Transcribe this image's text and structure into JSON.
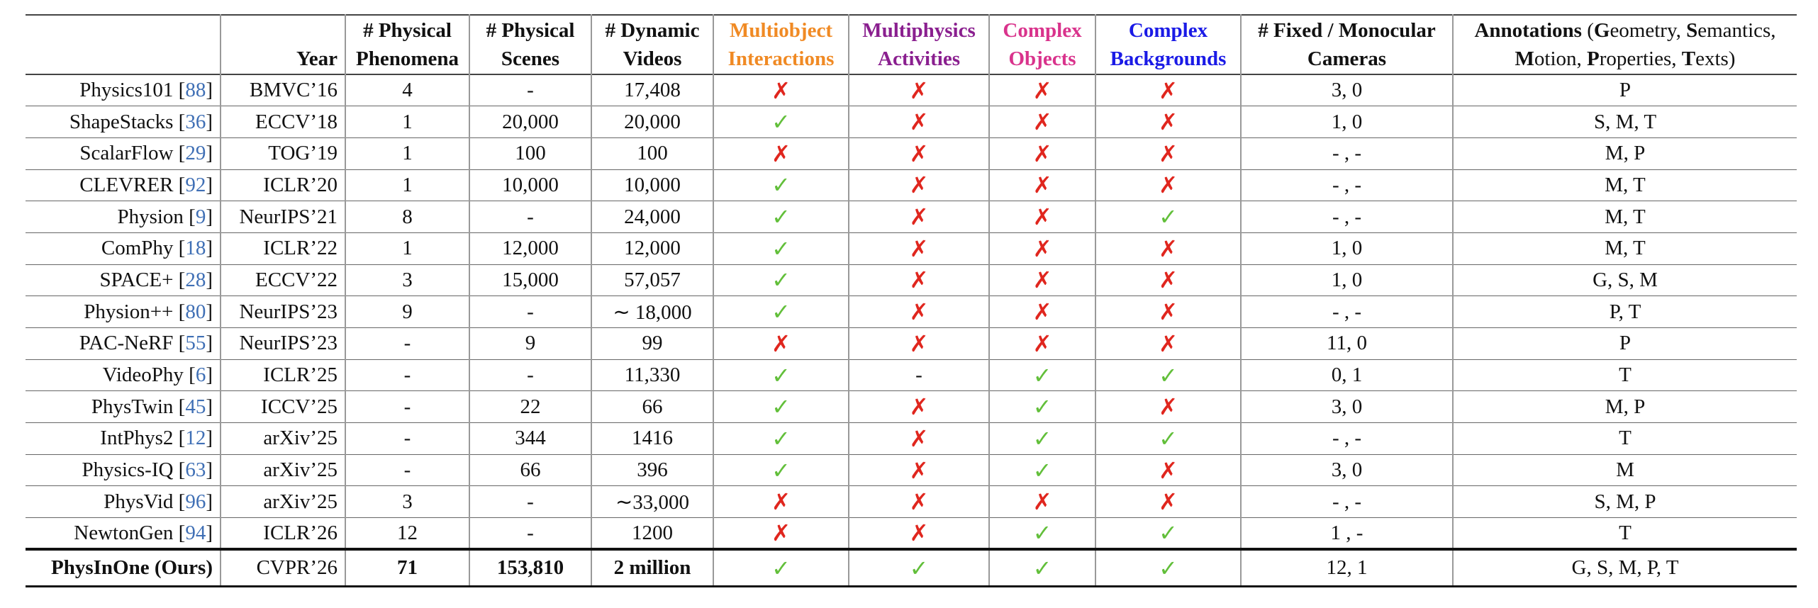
{
  "table": {
    "header": [
      {
        "lines": [
          ""
        ]
      },
      {
        "lines": [
          "",
          "Year"
        ]
      },
      {
        "lines": [
          "# Physical",
          "Phenomena"
        ]
      },
      {
        "lines": [
          "# Physical",
          "Scenes"
        ]
      },
      {
        "lines": [
          "# Dynamic",
          "Videos"
        ]
      },
      {
        "lines": [
          "Multiobject",
          "Interactions"
        ],
        "color": "#f08a24"
      },
      {
        "lines": [
          "Multiphysics",
          "Activities"
        ],
        "color": "#8a1f8f"
      },
      {
        "lines": [
          "Complex",
          "Objects"
        ],
        "color": "#d9338c"
      },
      {
        "lines": [
          "Complex",
          "Backgrounds"
        ],
        "color": "#1a1ae6"
      },
      {
        "lines": [
          "# Fixed / Monocular",
          "Cameras"
        ]
      },
      {
        "lines": [
          [
            {
              "t": "Annotations",
              "b": true
            },
            {
              "t": " (",
              "b": false
            },
            {
              "t": "G",
              "b": true
            },
            {
              "t": "eometry, ",
              "b": false
            },
            {
              "t": "S",
              "b": true
            },
            {
              "t": "emantics,",
              "b": false
            }
          ],
          [
            {
              "t": "M",
              "b": true
            },
            {
              "t": "otion, ",
              "b": false
            },
            {
              "t": "P",
              "b": true
            },
            {
              "t": "roperties, ",
              "b": false
            },
            {
              "t": "T",
              "b": true
            },
            {
              "t": "exts)",
              "b": false
            }
          ]
        ]
      }
    ],
    "check_colors": {
      "✓": "#62bf3a",
      "✗": "#e0261e"
    },
    "ref_color": "#3f6fb5",
    "rows": [
      {
        "method": [
          "Physics101 [",
          "88",
          "]"
        ],
        "cells": [
          "BMVC’16",
          "4",
          "-",
          "17,408",
          "✗",
          "✗",
          "✗",
          "✗",
          "3, 0",
          "P"
        ]
      },
      {
        "method": [
          "ShapeStacks [",
          "36",
          "]"
        ],
        "cells": [
          "ECCV’18",
          "1",
          "20,000",
          "20,000",
          "✓",
          "✗",
          "✗",
          "✗",
          "1, 0",
          "S, M, T"
        ]
      },
      {
        "method": [
          "ScalarFlow [",
          "29",
          "]"
        ],
        "cells": [
          "TOG’19",
          "1",
          "100",
          "100",
          "✗",
          "✗",
          "✗",
          "✗",
          "- , -",
          "M, P"
        ]
      },
      {
        "method": [
          "CLEVRER [",
          "92",
          "]"
        ],
        "cells": [
          "ICLR’20",
          "1",
          "10,000",
          "10,000",
          "✓",
          "✗",
          "✗",
          "✗",
          "- , -",
          "M, T"
        ]
      },
      {
        "method": [
          "Physion [",
          "9",
          "]"
        ],
        "cells": [
          "NeurIPS’21",
          "8",
          "-",
          "24,000",
          "✓",
          "✗",
          "✗",
          "✓",
          "- , -",
          "M, T"
        ]
      },
      {
        "method": [
          "ComPhy [",
          "18",
          "]"
        ],
        "cells": [
          "ICLR’22",
          "1",
          "12,000",
          "12,000",
          "✓",
          "✗",
          "✗",
          "✗",
          "1, 0",
          "M, T"
        ]
      },
      {
        "method": [
          "SPACE+ [",
          "28",
          "]"
        ],
        "cells": [
          "ECCV’22",
          "3",
          "15,000",
          "57,057",
          "✓",
          "✗",
          "✗",
          "✗",
          "1, 0",
          "G, S, M"
        ]
      },
      {
        "method": [
          "Physion++ [",
          "80",
          "]"
        ],
        "cells": [
          "NeurIPS’23",
          "9",
          "-",
          "∼ 18,000",
          "✓",
          "✗",
          "✗",
          "✗",
          "- , -",
          "P, T"
        ]
      },
      {
        "method": [
          "PAC-NeRF [",
          "55",
          "]"
        ],
        "cells": [
          "NeurIPS’23",
          "-",
          "9",
          "99",
          "✗",
          "✗",
          "✗",
          "✗",
          "11, 0",
          "P"
        ]
      },
      {
        "method": [
          "VideoPhy [",
          "6",
          "]"
        ],
        "cells": [
          "ICLR’25",
          "-",
          "-",
          "11,330",
          "✓",
          "-",
          "✓",
          "✓",
          "0, 1",
          "T"
        ]
      },
      {
        "method": [
          "PhysTwin [",
          "45",
          "]"
        ],
        "cells": [
          "ICCV’25",
          "-",
          "22",
          "66",
          "✓",
          "✗",
          "✓",
          "✗",
          "3, 0",
          "M, P"
        ]
      },
      {
        "method": [
          "IntPhys2 [",
          "12",
          "]"
        ],
        "cells": [
          "arXiv’25",
          "-",
          "344",
          "1416",
          "✓",
          "✗",
          "✓",
          "✓",
          "- , -",
          "T"
        ]
      },
      {
        "method": [
          "Physics-IQ [",
          "63",
          "]"
        ],
        "cells": [
          "arXiv’25",
          "-",
          "66",
          "396",
          "✓",
          "✗",
          "✓",
          "✗",
          "3, 0",
          "M"
        ]
      },
      {
        "method": [
          "PhysVid [",
          "96",
          "]"
        ],
        "cells": [
          "arXiv’25",
          "3",
          "-",
          "∼33,000",
          "✗",
          "✗",
          "✗",
          "✗",
          "- , -",
          "S, M, P"
        ]
      },
      {
        "method": [
          "NewtonGen [",
          "94",
          "]"
        ],
        "cells": [
          "ICLR’26",
          "12",
          "-",
          "1200",
          "✗",
          "✗",
          "✓",
          "✓",
          "1 , -",
          "T"
        ]
      },
      {
        "method": [
          "PhysInOne (Ours)"
        ],
        "method_bold": true,
        "bold_cells": [
          1,
          2,
          3
        ],
        "cells": [
          "CVPR’26",
          "71",
          "153,810",
          "2 million",
          "✓",
          "✓",
          "✓",
          "✓",
          "12, 1",
          "G, S, M, P, T"
        ]
      }
    ]
  }
}
